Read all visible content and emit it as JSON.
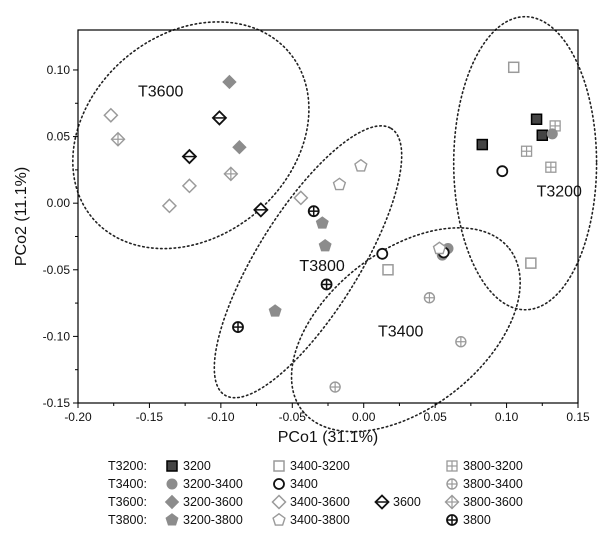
{
  "chart_data": {
    "type": "scatter",
    "xlabel": "PCo1 (31.1%)",
    "ylabel": "PCo2 (11.1%)",
    "xlim": [
      -0.2,
      0.15
    ],
    "ylim": [
      -0.15,
      0.13
    ],
    "xticks": [
      -0.2,
      -0.15,
      -0.1,
      -0.05,
      0.0,
      0.05,
      0.1,
      0.15
    ],
    "xtick_labels": [
      "-0.20",
      "-0.15",
      "-0.10",
      "-0.05",
      "0.00",
      "0.05",
      "0.10",
      "0.15"
    ],
    "yticks": [
      -0.15,
      -0.1,
      -0.05,
      0.0,
      0.05,
      0.1
    ],
    "ytick_labels": [
      "-0.15",
      "-0.10",
      "-0.05",
      "0.00",
      "0.05",
      "0.10"
    ],
    "grid": false,
    "legend_position": "bottom",
    "legend_groups": [
      "T3200:",
      "T3400:",
      "T3600:",
      "T3800:"
    ],
    "groups": [
      {
        "label": "T3200",
        "label_pos": [
          0.121,
          0.005
        ],
        "ellipse": {
          "cx": 0.113,
          "cy": 0.03,
          "rx": 0.05,
          "ry": 0.11,
          "angle": 0
        }
      },
      {
        "label": "T3400",
        "label_pos": [
          0.01,
          -0.1
        ],
        "ellipse": {
          "cx": 0.0295,
          "cy": -0.095,
          "rx": 0.092,
          "ry": 0.059,
          "angle": 38
        }
      },
      {
        "label": "T3600",
        "label_pos": [
          -0.158,
          0.08
        ],
        "ellipse": {
          "cx": -0.121,
          "cy": 0.051,
          "rx": 0.09,
          "ry": 0.076,
          "angle": 40
        }
      },
      {
        "label": "T3800",
        "label_pos": [
          -0.045,
          -0.051
        ],
        "ellipse": {
          "cx": -0.039,
          "cy": -0.044,
          "rx": 0.11,
          "ry": 0.038,
          "angle": 58
        }
      }
    ],
    "series": [
      {
        "name": "3200",
        "marker": "square-dot",
        "legend_row": 0,
        "legend_col": 0,
        "points": [
          [
            0.083,
            0.044
          ],
          [
            0.121,
            0.063
          ],
          [
            0.125,
            0.051
          ]
        ]
      },
      {
        "name": "3400-3200",
        "marker": "square-open",
        "legend_row": 0,
        "legend_col": 1,
        "points": [
          [
            0.105,
            0.102
          ],
          [
            0.117,
            -0.045
          ],
          [
            0.017,
            -0.05
          ]
        ]
      },
      {
        "name": "3800-3200",
        "marker": "square-grid",
        "legend_row": 0,
        "legend_col": 2,
        "points": [
          [
            0.134,
            0.058
          ],
          [
            0.131,
            0.027
          ],
          [
            0.114,
            0.039
          ]
        ]
      },
      {
        "name": "3200-3400",
        "marker": "circle-filled",
        "legend_row": 1,
        "legend_col": 0,
        "points": [
          [
            0.132,
            0.052
          ],
          [
            0.059,
            -0.034
          ],
          [
            0.055,
            -0.039
          ]
        ]
      },
      {
        "name": "3400",
        "marker": "circle-open",
        "legend_row": 1,
        "legend_col": 1,
        "points": [
          [
            0.097,
            0.024
          ],
          [
            0.013,
            -0.038
          ],
          [
            0.056,
            -0.037
          ]
        ]
      },
      {
        "name": "3800-3400",
        "marker": "circle-cross",
        "legend_row": 1,
        "legend_col": 2,
        "points": [
          [
            0.046,
            -0.071
          ],
          [
            0.068,
            -0.104
          ],
          [
            -0.02,
            -0.138
          ]
        ]
      },
      {
        "name": "3200-3600",
        "marker": "diamond-filled",
        "legend_row": 2,
        "legend_col": 0,
        "points": [
          [
            -0.094,
            0.091
          ],
          [
            -0.087,
            0.042
          ]
        ]
      },
      {
        "name": "3400-3600",
        "marker": "diamond-open",
        "legend_row": 2,
        "legend_col": 1,
        "points": [
          [
            -0.177,
            0.066
          ],
          [
            -0.122,
            0.013
          ],
          [
            -0.136,
            -0.002
          ],
          [
            -0.044,
            0.004
          ]
        ]
      },
      {
        "name": "3600",
        "marker": "diamond-line",
        "legend_row": 2,
        "legend_col": 2,
        "points": [
          [
            -0.101,
            0.064
          ],
          [
            -0.122,
            0.035
          ],
          [
            -0.072,
            -0.005
          ]
        ]
      },
      {
        "name": "3800-3600",
        "marker": "diamond-cross",
        "legend_row": 2,
        "legend_col": 3,
        "points": [
          [
            -0.172,
            0.048
          ],
          [
            -0.093,
            0.022
          ]
        ]
      },
      {
        "name": "3200-3800",
        "marker": "pentagon-filled",
        "legend_row": 3,
        "legend_col": 0,
        "points": [
          [
            -0.029,
            -0.015
          ],
          [
            -0.027,
            -0.032
          ],
          [
            -0.062,
            -0.081
          ]
        ]
      },
      {
        "name": "3400-3800",
        "marker": "pentagon-open",
        "legend_row": 3,
        "legend_col": 1,
        "points": [
          [
            -0.002,
            0.028
          ],
          [
            -0.017,
            0.014
          ],
          [
            0.053,
            -0.034
          ]
        ]
      },
      {
        "name": "3800",
        "marker": "circle-cross-bold",
        "legend_row": 3,
        "legend_col": 2,
        "points": [
          [
            -0.035,
            -0.006
          ],
          [
            -0.026,
            -0.061
          ],
          [
            -0.088,
            -0.093
          ]
        ]
      }
    ],
    "colors": {
      "filled": "#8c8c8c",
      "light": "#9a9a9a",
      "dark": "#111111",
      "frame": "#000000"
    }
  }
}
